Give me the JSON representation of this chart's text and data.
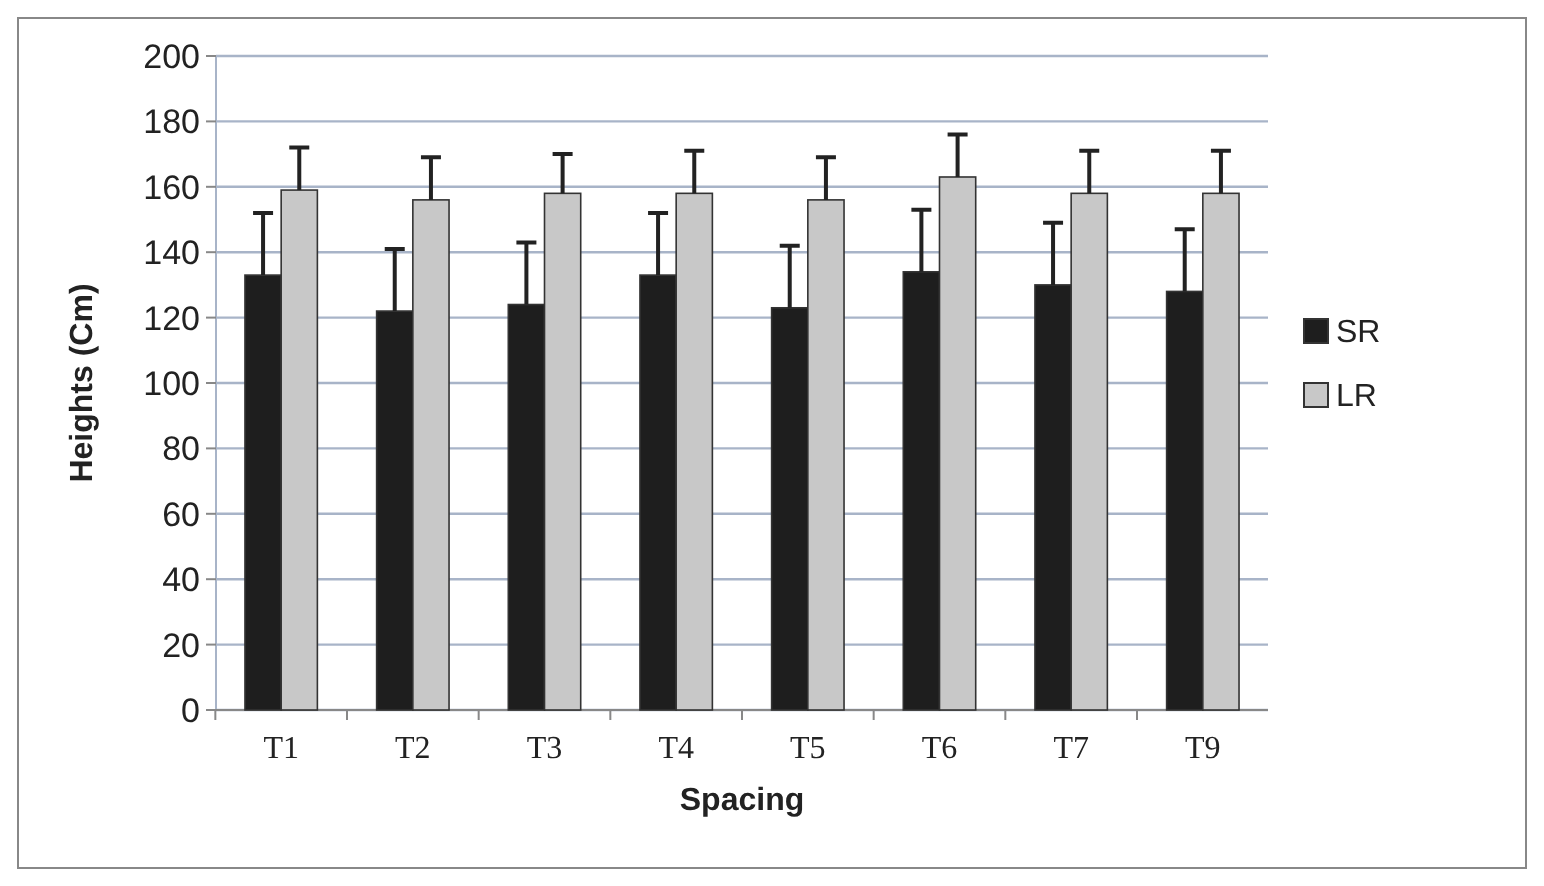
{
  "chart_data": {
    "type": "bar",
    "xlabel": "Spacing",
    "ylabel": "Heights (Cm)",
    "categories": [
      "T1",
      "T2",
      "T3",
      "T4",
      "T5",
      "T6",
      "T7",
      "T9"
    ],
    "series": [
      {
        "name": "SR",
        "color": "#1e1e1e",
        "values": [
          133,
          122,
          124,
          133,
          123,
          134,
          130,
          128
        ],
        "errors": [
          19,
          19,
          19,
          19,
          19,
          19,
          19,
          19
        ]
      },
      {
        "name": "LR",
        "color": "#c8c8c8",
        "values": [
          159,
          156,
          158,
          158,
          156,
          163,
          158,
          158
        ],
        "errors": [
          13,
          13,
          12,
          13,
          13,
          13,
          13,
          13
        ]
      }
    ],
    "ylim": [
      0,
      200
    ],
    "yticks": [
      0,
      20,
      40,
      60,
      80,
      100,
      120,
      140,
      160,
      180,
      200
    ],
    "grid": "y",
    "legend": "right"
  }
}
